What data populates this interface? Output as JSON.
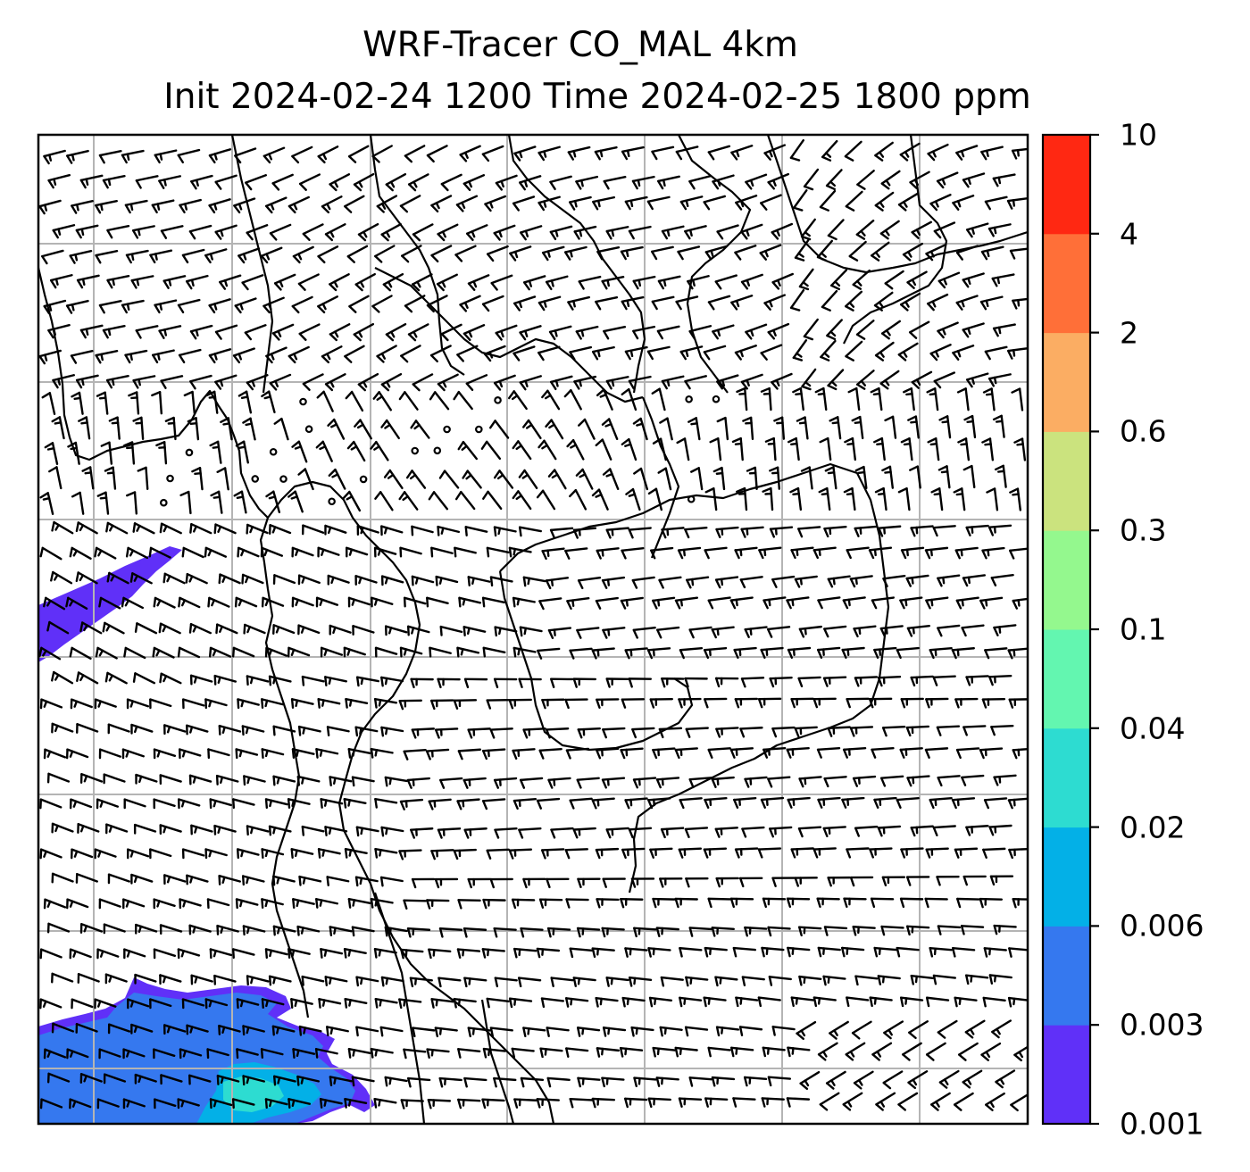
{
  "title": {
    "line1": "WRF-Tracer CO_MAL 4km",
    "line2": "Init 2024-02-24 1200 Time 2024-02-25 1800 ppm"
  },
  "colorbar": {
    "levels": [
      "0.001",
      "0.003",
      "0.006",
      "0.02",
      "0.04",
      "0.1",
      "0.3",
      "0.6",
      "2",
      "4",
      "10"
    ],
    "colors": [
      "#6030f8",
      "#3578ef",
      "#03b0e7",
      "#2ddcd1",
      "#63f6b0",
      "#94f88e",
      "#cbe37e",
      "#fbad63",
      "#ff6f38",
      "#ff2812"
    ]
  },
  "map": {
    "gridlines": true,
    "barb_color": "#000000",
    "coast_color": "#000000",
    "grid_color": "#b4b4b4"
  }
}
